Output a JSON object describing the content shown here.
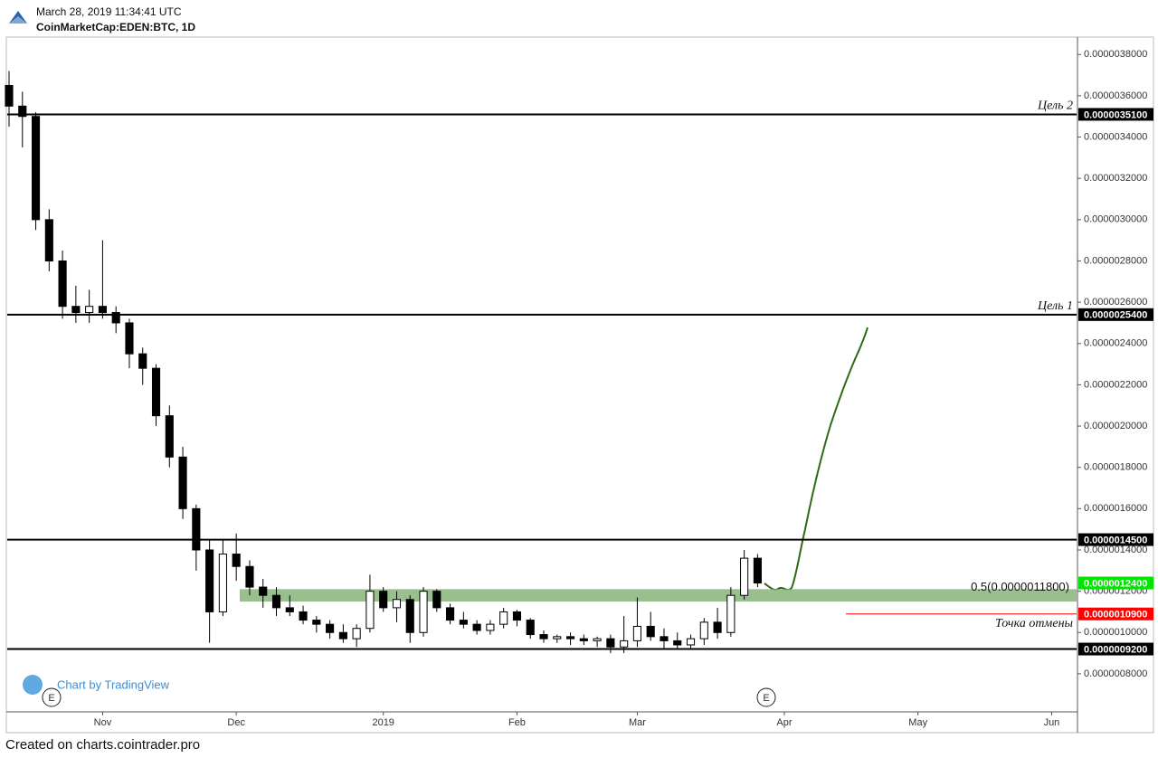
{
  "header": {
    "timestamp": "March 28, 2019 11:34:41 UTC",
    "symbol": "CoinMarketCap:EDEN:BTC, 1D"
  },
  "footer": {
    "created": "Created on charts.cointrader.pro",
    "watermark": "Chart by TradingView",
    "event_marker": "E"
  },
  "chart_data": {
    "type": "candlestick",
    "x": [
      null,
      null,
      null,
      null,
      null,
      null,
      null,
      "Nov",
      null,
      null,
      null,
      null,
      null,
      null,
      null,
      null,
      null,
      "Dec",
      null,
      null,
      null,
      null,
      null,
      null,
      null,
      null,
      null,
      null,
      "2019",
      null,
      null,
      null,
      null,
      null,
      null,
      null,
      null,
      null,
      "Feb",
      null,
      null,
      null,
      null,
      null,
      null,
      null,
      null,
      "Mar",
      null,
      null,
      null,
      null,
      null,
      null,
      null,
      null,
      null,
      null,
      "Apr",
      null,
      null,
      null,
      null,
      null,
      null,
      null,
      null,
      null,
      "May",
      null,
      null,
      null,
      null,
      null,
      null,
      null,
      null,
      null,
      "Jun",
      null
    ],
    "open": [
      3.65e-06,
      3.55e-06,
      3.5e-06,
      3e-06,
      2.8e-06,
      2.58e-06,
      2.55e-06,
      2.58e-06,
      2.55e-06,
      2.5e-06,
      2.35e-06,
      2.28e-06,
      2.05e-06,
      1.85e-06,
      1.6e-06,
      1.4e-06,
      1.1e-06,
      1.38e-06,
      1.32e-06,
      1.22e-06,
      1.18e-06,
      1.12e-06,
      1.1e-06,
      1.06e-06,
      1.04e-06,
      1e-06,
      9.7e-07,
      1.02e-06,
      1.2e-06,
      1.12e-06,
      1.16e-06,
      1e-06,
      1.2e-06,
      1.12e-06,
      1.06e-06,
      1.04e-06,
      1.01e-06,
      1.04e-06,
      1.1e-06,
      1.06e-06,
      9.9e-07,
      9.7e-07,
      9.8e-07,
      9.7e-07,
      9.6e-07,
      9.7e-07,
      9.3e-07,
      9.6e-07,
      1.03e-06,
      9.8e-07,
      9.6e-07,
      9.4e-07,
      9.7e-07,
      1.05e-06,
      1e-06,
      1.18e-06,
      1.36e-06,
      null,
      null,
      null,
      null,
      null,
      null,
      null,
      null,
      null,
      null,
      null,
      null,
      null,
      null,
      null,
      null,
      null,
      null,
      null,
      null,
      null,
      null,
      null
    ],
    "high": [
      3.72e-06,
      3.62e-06,
      3.52e-06,
      3.05e-06,
      2.85e-06,
      2.68e-06,
      2.66e-06,
      2.9e-06,
      2.58e-06,
      2.52e-06,
      2.38e-06,
      2.3e-06,
      2.1e-06,
      1.9e-06,
      1.62e-06,
      1.45e-06,
      1.45e-06,
      1.48e-06,
      1.35e-06,
      1.26e-06,
      1.22e-06,
      1.18e-06,
      1.13e-06,
      1.08e-06,
      1.06e-06,
      1.04e-06,
      1.04e-06,
      1.28e-06,
      1.22e-06,
      1.2e-06,
      1.18e-06,
      1.22e-06,
      1.21e-06,
      1.14e-06,
      1.1e-06,
      1.06e-06,
      1.06e-06,
      1.12e-06,
      1.11e-06,
      1.07e-06,
      1.01e-06,
      9.9e-07,
      1e-06,
      9.9e-07,
      9.8e-07,
      9.9e-07,
      1.08e-06,
      1.17e-06,
      1.1e-06,
      1.02e-06,
      1e-06,
      9.9e-07,
      1.07e-06,
      1.12e-06,
      1.22e-06,
      1.4e-06,
      1.38e-06,
      null,
      null,
      null,
      null,
      null,
      null,
      null,
      null,
      null,
      null,
      null,
      null,
      null,
      null,
      null,
      null,
      null,
      null,
      null,
      null,
      null,
      null,
      null
    ],
    "low": [
      3.45e-06,
      3.35e-06,
      2.95e-06,
      2.75e-06,
      2.52e-06,
      2.5e-06,
      2.5e-06,
      2.52e-06,
      2.45e-06,
      2.28e-06,
      2.2e-06,
      2e-06,
      1.8e-06,
      1.55e-06,
      1.3e-06,
      9.5e-07,
      1.08e-06,
      1.25e-06,
      1.18e-06,
      1.12e-06,
      1.08e-06,
      1.08e-06,
      1.04e-06,
      1e-06,
      9.7e-07,
      9.5e-07,
      9.3e-07,
      1e-06,
      1.1e-06,
      1.05e-06,
      9.5e-07,
      9.8e-07,
      1.1e-06,
      1.04e-06,
      1.02e-06,
      9.9e-07,
      9.9e-07,
      1.02e-06,
      1.03e-06,
      9.7e-07,
      9.5e-07,
      9.5e-07,
      9.4e-07,
      9.4e-07,
      9.3e-07,
      9e-07,
      9e-07,
      9.3e-07,
      9.6e-07,
      9.2e-07,
      9.2e-07,
      9.2e-07,
      9.4e-07,
      9.7e-07,
      9.8e-07,
      1.16e-06,
      1.22e-06,
      null,
      null,
      null,
      null,
      null,
      null,
      null,
      null,
      null,
      null,
      null,
      null,
      null,
      null,
      null,
      null,
      null,
      null,
      null,
      null,
      null,
      null,
      null
    ],
    "close": [
      3.55e-06,
      3.5e-06,
      3e-06,
      2.8e-06,
      2.58e-06,
      2.55e-06,
      2.58e-06,
      2.55e-06,
      2.5e-06,
      2.35e-06,
      2.28e-06,
      2.05e-06,
      1.85e-06,
      1.6e-06,
      1.4e-06,
      1.1e-06,
      1.38e-06,
      1.32e-06,
      1.22e-06,
      1.18e-06,
      1.12e-06,
      1.1e-06,
      1.06e-06,
      1.04e-06,
      1e-06,
      9.7e-07,
      1.02e-06,
      1.2e-06,
      1.12e-06,
      1.16e-06,
      1e-06,
      1.2e-06,
      1.12e-06,
      1.06e-06,
      1.04e-06,
      1.01e-06,
      1.04e-06,
      1.1e-06,
      1.06e-06,
      9.9e-07,
      9.7e-07,
      9.8e-07,
      9.7e-07,
      9.6e-07,
      9.7e-07,
      9.3e-07,
      9.6e-07,
      1.03e-06,
      9.8e-07,
      9.6e-07,
      9.4e-07,
      9.7e-07,
      1.05e-06,
      1e-06,
      1.18e-06,
      1.36e-06,
      1.24e-06,
      null,
      null,
      null,
      null,
      null,
      null,
      null,
      null,
      null,
      null,
      null,
      null,
      null,
      null,
      null,
      null,
      null,
      null,
      null,
      null,
      null,
      null,
      null
    ],
    "up_color": "#ffffff",
    "down_color": "#000000",
    "ylim": [
      6.2e-07,
      3.88e-06
    ],
    "yticks": [
      {
        "value": 8e-07,
        "label": "0.0000008000"
      },
      {
        "value": 1e-06,
        "label": "0.0000010000"
      },
      {
        "value": 1.2e-06,
        "label": "0.0000012000"
      },
      {
        "value": 1.4e-06,
        "label": "0.0000014000"
      },
      {
        "value": 1.6e-06,
        "label": "0.0000016000"
      },
      {
        "value": 1.8e-06,
        "label": "0.0000018000"
      },
      {
        "value": 2e-06,
        "label": "0.0000020000"
      },
      {
        "value": 2.2e-06,
        "label": "0.0000022000"
      },
      {
        "value": 2.4e-06,
        "label": "0.0000024000"
      },
      {
        "value": 2.6e-06,
        "label": "0.0000026000"
      },
      {
        "value": 2.8e-06,
        "label": "0.0000028000"
      },
      {
        "value": 3e-06,
        "label": "0.0000030000"
      },
      {
        "value": 3.2e-06,
        "label": "0.0000032000"
      },
      {
        "value": 3.4e-06,
        "label": "0.0000034000"
      },
      {
        "value": 3.6e-06,
        "label": "0.0000036000"
      },
      {
        "value": 3.8e-06,
        "label": "0.0000038000"
      }
    ],
    "levels": [
      {
        "value": 3.51e-06,
        "label": "0.0000035100",
        "name": "Цель 2",
        "color": "#000000"
      },
      {
        "value": 2.54e-06,
        "label": "0.0000025400",
        "name": "Цель 1",
        "color": "#000000"
      },
      {
        "value": 1.45e-06,
        "label": "0.0000014500",
        "color": "#000000"
      },
      {
        "value": 1.24e-06,
        "label": "0.0000012400",
        "color": "#00e600",
        "line": false
      },
      {
        "value": 1.09e-06,
        "label": "0.0000010900",
        "name": "Точка отмены",
        "color": "#ff0000",
        "span": "partial"
      },
      {
        "value": 9.2e-07,
        "label": "0.0000009200",
        "color": "#000000"
      }
    ],
    "zone": {
      "from": 1.15e-06,
      "to": 1.21e-06,
      "label": "0.5(0.0000011800)",
      "color": "#8fb883"
    }
  }
}
